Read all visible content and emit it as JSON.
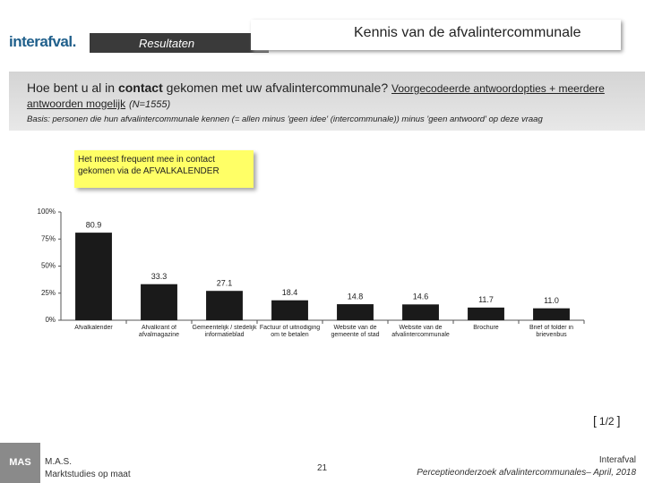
{
  "header": {
    "logo": "interafval.",
    "section": "Resultaten",
    "title": "Kennis van de afvalintercommunale"
  },
  "question": {
    "pre": "Hoe bent u al in",
    "bold": "contact",
    "post": "gekomen met uw afvalintercommunale?",
    "underlined": "Voorgecodeerde antwoordopties + meerdere antwoorden mogelijk",
    "n": "(N=1555)"
  },
  "basis": "Basis: personen die hun afvalintercommunale kennen (= allen minus 'geen idee' (intercommunale)) minus 'geen antwoord' op deze vraag",
  "callout": "Het meest frequent mee in contact gekomen via de AFVALKALENDER",
  "chart_data": {
    "type": "bar",
    "categories": [
      "Afvalkalender",
      "Afvalkrant of afvalmagazine",
      "Gemeentelijk / stedelijk informatieblad",
      "Factuur of uitnodiging om te betalen",
      "Website van de gemeente of stad",
      "Website van de afvalintercommunale",
      "Brochure",
      "Brief of folder in brievenbus"
    ],
    "values": [
      80.9,
      33.3,
      27.1,
      18.4,
      14.8,
      14.6,
      11.7,
      11.0
    ],
    "value_labels": [
      "80.9",
      "33.3",
      "27.1",
      "18.4",
      "14.8",
      "14.6",
      "11.7",
      "11.0"
    ],
    "color": "#1a1a1a",
    "ylim": [
      0,
      100
    ],
    "yticks": [
      {
        "value": 0,
        "label": "0%"
      },
      {
        "value": 25,
        "label": "25%"
      },
      {
        "value": 50,
        "label": "50%"
      },
      {
        "value": 75,
        "label": "75%"
      },
      {
        "value": 100,
        "label": "100%"
      }
    ],
    "grid": false
  },
  "page": "1/2",
  "footer": {
    "company": "M.A.S.",
    "tagline": "Marktstudies op maat",
    "mark": "MAS",
    "number": "21",
    "client": "Interafval",
    "study": "Perceptieonderzoek afvalintercommunales– April, 2018"
  }
}
